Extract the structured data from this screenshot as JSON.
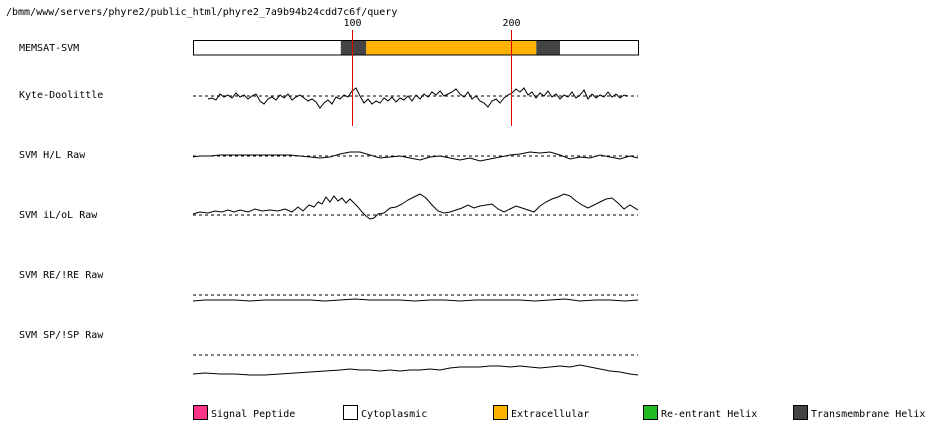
{
  "path_title": "/bmm/www/servers/phyre2/public_html/phyre2_7a9b94b24cdd7c6f/query",
  "tracks": [
    {
      "label": "MEMSAT-SVM"
    },
    {
      "label": "Kyte-Doolittle"
    },
    {
      "label": "SVM H/L Raw"
    },
    {
      "label": "SVM iL/oL Raw"
    },
    {
      "label": "SVM RE/!RE Raw"
    },
    {
      "label": "SVM SP/!SP Raw"
    }
  ],
  "axis": {
    "residue_range": [
      0,
      280
    ],
    "markers": [
      {
        "label": "100",
        "position": 100,
        "color": "#e00000"
      },
      {
        "label": "200",
        "position": 200,
        "color": "#e00000"
      }
    ]
  },
  "topology_segments": [
    {
      "type": "Cytoplasmic",
      "start": 0,
      "end": 93
    },
    {
      "type": "Transmembrane Helix",
      "start": 93,
      "end": 109
    },
    {
      "type": "Extracellular",
      "start": 109,
      "end": 216
    },
    {
      "type": "Transmembrane Helix",
      "start": 216,
      "end": 231
    },
    {
      "type": "Cytoplasmic",
      "start": 231,
      "end": 280
    }
  ],
  "legend": [
    {
      "label": "Signal Peptide",
      "color": "#ff3388"
    },
    {
      "label": "Cytoplasmic",
      "color": "#ffffff"
    },
    {
      "label": "Extracellular",
      "color": "#ffb300"
    },
    {
      "label": "Re-entrant Helix",
      "color": "#22bb22"
    },
    {
      "label": "Transmembrane Helix",
      "color": "#444444"
    }
  ]
}
